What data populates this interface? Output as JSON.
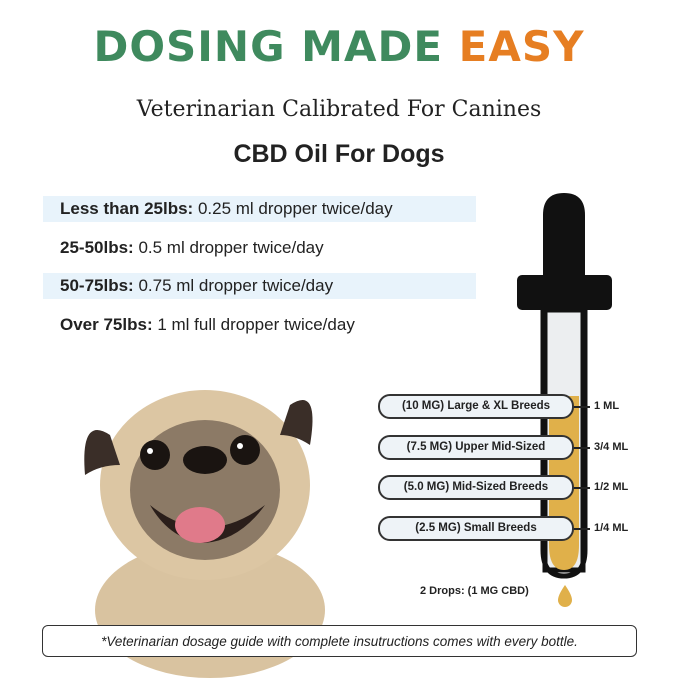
{
  "title": {
    "part1": "DOSING MADE",
    "part2": "EASY"
  },
  "subtitle": "Veterinarian Calibrated For Canines",
  "product": "CBD Oil For Dogs",
  "dosage_rows": [
    {
      "weight": "Less than 25lbs:",
      "dose": "0.25 ml dropper twice/day"
    },
    {
      "weight": "25-50lbs:",
      "dose": "0.5 ml dropper twice/day"
    },
    {
      "weight": "50-75lbs:",
      "dose": "0.75 ml dropper twice/day"
    },
    {
      "weight": "Over 75lbs:",
      "dose": "1 ml full dropper twice/day"
    }
  ],
  "dropper": {
    "markers": [
      {
        "label": "(10 MG) Large & XL Breeds",
        "volume": "1 ML"
      },
      {
        "label": "(7.5 MG) Upper Mid-Sized",
        "volume": "3/4 ML"
      },
      {
        "label": "(5.0 MG) Mid-Sized Breeds",
        "volume": "1/2 ML"
      },
      {
        "label": "(2.5 MG) Small Breeds",
        "volume": "1/4 ML"
      }
    ],
    "drops_note": "2 Drops: (1 MG CBD)",
    "oil_color": "#e0b04a"
  },
  "footer": "*Veterinarian dosage guide with complete insutructions comes with every bottle.",
  "colors": {
    "green": "#3f8a5e",
    "orange": "#e67e22",
    "highlight": "#e8f3fb"
  }
}
